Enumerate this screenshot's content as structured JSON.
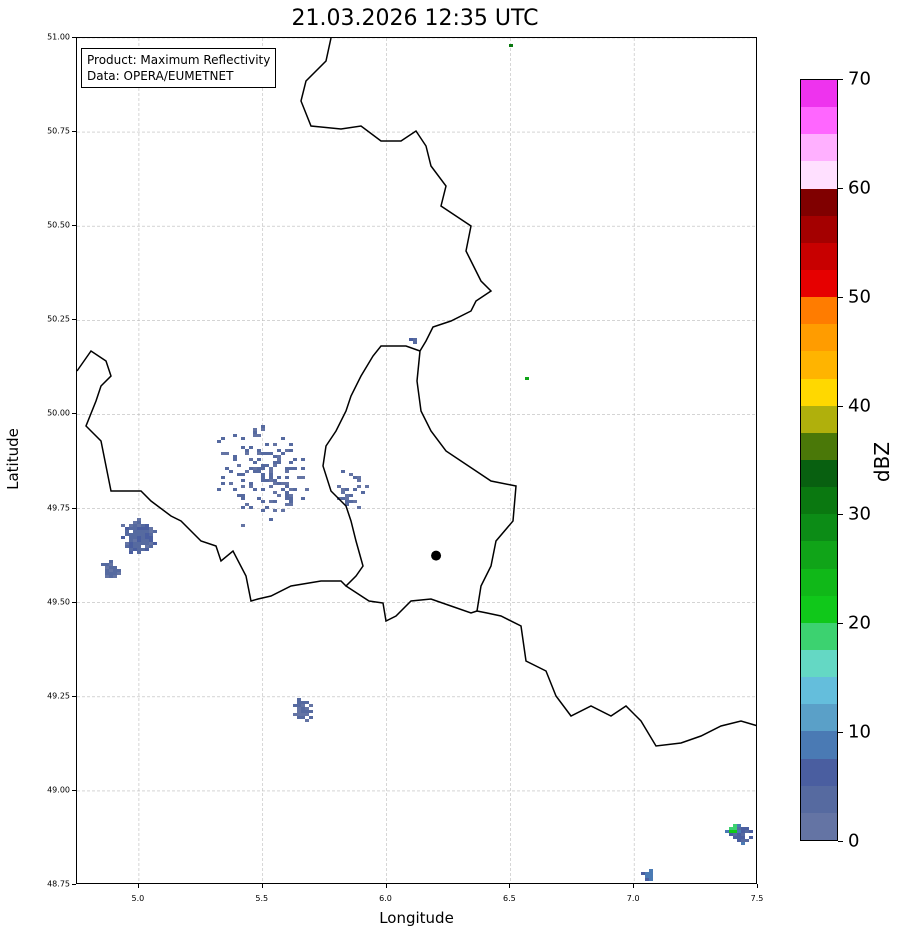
{
  "title": "21.03.2026 12:35 UTC",
  "legend": {
    "product": "Product: Maximum Reflectivity",
    "data": "Data: OPERA/EUMETNET"
  },
  "axes": {
    "xlabel": "Longitude",
    "ylabel": "Latitude",
    "xlim": [
      4.75,
      7.5
    ],
    "ylim": [
      48.75,
      51.0
    ],
    "xticks": [
      "5.0",
      "5.5",
      "6.0",
      "6.5",
      "7.0",
      "7.5"
    ],
    "yticks": [
      "48.75",
      "49.00",
      "49.25",
      "49.50",
      "49.75",
      "50.00",
      "50.25",
      "50.50",
      "50.75",
      "51.00"
    ]
  },
  "colorbar": {
    "label": "dBZ",
    "range": [
      0,
      70
    ],
    "ticks": [
      "0",
      "10",
      "20",
      "30",
      "40",
      "50",
      "60",
      "70"
    ],
    "colors": [
      "#6474a4",
      "#566aa0",
      "#4a5ea0",
      "#4a7ab4",
      "#5aa0c8",
      "#64bedc",
      "#64d8c4",
      "#3cd270",
      "#10c81a",
      "#10b818",
      "#10a418",
      "#0c8c16",
      "#0a7810",
      "#086010",
      "#4a7808",
      "#b0b00c",
      "#ffd800",
      "#ffb400",
      "#ff9c00",
      "#ff7c00",
      "#e60000",
      "#c80000",
      "#a40000",
      "#800000",
      "#ffe0ff",
      "#ffb0ff",
      "#ff66ff",
      "#ee33ee"
    ]
  },
  "station": {
    "lon": 6.2,
    "lat": 49.625
  },
  "echoes": [
    {
      "lon": 5.0,
      "lat": 49.68,
      "spread": 0.08,
      "n": 160,
      "dbz": 4
    },
    {
      "lon": 4.88,
      "lat": 49.59,
      "spread": 0.05,
      "n": 50,
      "dbz": 3
    },
    {
      "lon": 5.65,
      "lat": 49.22,
      "spread": 0.05,
      "n": 50,
      "dbz": 3
    },
    {
      "lon": 5.5,
      "lat": 49.85,
      "spread": 0.25,
      "n": 140,
      "dbz": 3
    },
    {
      "lon": 5.85,
      "lat": 49.8,
      "spread": 0.1,
      "n": 25,
      "dbz": 2
    },
    {
      "lon": 7.05,
      "lat": 48.78,
      "spread": 0.03,
      "n": 20,
      "dbz": 8
    },
    {
      "lon": 7.42,
      "lat": 48.89,
      "spread": 0.05,
      "n": 40,
      "dbz": 6
    },
    {
      "lon": 7.4,
      "lat": 48.9,
      "spread": 0.02,
      "n": 8,
      "dbz": 20
    },
    {
      "lon": 6.49,
      "lat": 50.98,
      "spread": 0.003,
      "n": 1,
      "dbz": 32
    },
    {
      "lon": 6.56,
      "lat": 50.1,
      "spread": 0.003,
      "n": 1,
      "dbz": 25
    },
    {
      "lon": 6.1,
      "lat": 50.2,
      "spread": 0.02,
      "n": 4,
      "dbz": 4
    }
  ]
}
